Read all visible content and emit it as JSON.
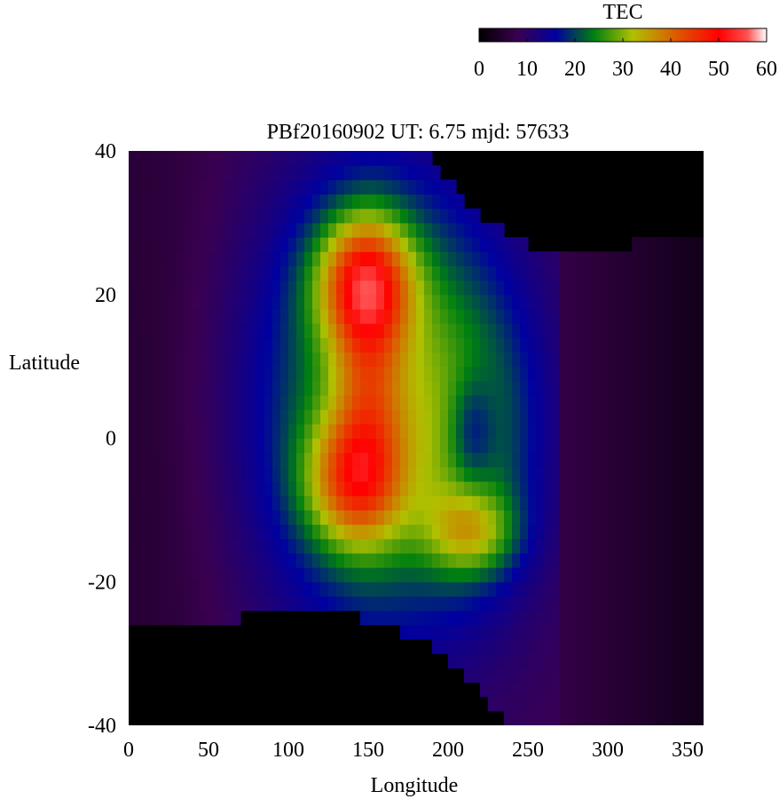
{
  "chart_data": {
    "type": "heatmap",
    "title": "PBf20160902  UT: 6.75  mjd: 57633",
    "xlabel": "Longitude",
    "ylabel": "Latitude",
    "xlim": [
      0,
      360
    ],
    "ylim": [
      -40,
      40
    ],
    "x_ticks": [
      "0",
      "50",
      "100",
      "150",
      "200",
      "250",
      "300",
      "350"
    ],
    "y_ticks": [
      "40",
      "20",
      "0",
      "-20",
      "-40"
    ],
    "grid": false,
    "colorbar": {
      "label": "TEC",
      "range": [
        0,
        60
      ],
      "ticks": [
        "0",
        "10",
        "20",
        "30",
        "40",
        "50",
        "60"
      ],
      "placement": "top-right",
      "colormap_stops": [
        {
          "v": 0,
          "c": "#000000"
        },
        {
          "v": 8,
          "c": "#3a0050"
        },
        {
          "v": 16,
          "c": "#0000a0"
        },
        {
          "v": 24,
          "c": "#008010"
        },
        {
          "v": 32,
          "c": "#b0c000"
        },
        {
          "v": 42,
          "c": "#e05000"
        },
        {
          "v": 50,
          "c": "#ff0000"
        },
        {
          "v": 56,
          "c": "#ff5050"
        },
        {
          "v": 60,
          "c": "#ffffff"
        }
      ]
    },
    "no_data_color": "#000000",
    "no_data_regions": [
      {
        "name": "north-east",
        "lon_range": [
          185,
          360
        ],
        "lat_top_boundary": [
          [
            185,
            40
          ],
          [
            200,
            36
          ],
          [
            220,
            31
          ],
          [
            240,
            28
          ],
          [
            260,
            26
          ],
          [
            280,
            25
          ],
          [
            300,
            26
          ],
          [
            330,
            28
          ],
          [
            360,
            28
          ]
        ]
      },
      {
        "name": "south",
        "lon_range": [
          0,
          240
        ],
        "lat_bottom_boundary": [
          [
            0,
            -25
          ],
          [
            40,
            -26
          ],
          [
            70,
            -25
          ],
          [
            90,
            -23
          ],
          [
            110,
            -23
          ],
          [
            130,
            -24
          ],
          [
            160,
            -26
          ],
          [
            190,
            -29
          ],
          [
            215,
            -34
          ],
          [
            230,
            -38
          ],
          [
            240,
            -40
          ]
        ]
      }
    ],
    "features": [
      {
        "type": "peak",
        "lon": 150,
        "lat": 22,
        "value": 55
      },
      {
        "type": "peak",
        "lon": 140,
        "lat": -5,
        "value": 48
      },
      {
        "type": "ridge",
        "lon_range": [
          115,
          190
        ],
        "lat_range": [
          -12,
          26
        ],
        "value": 40
      },
      {
        "type": "local_min",
        "lon": 215,
        "lat": 1,
        "value": 18
      }
    ]
  }
}
